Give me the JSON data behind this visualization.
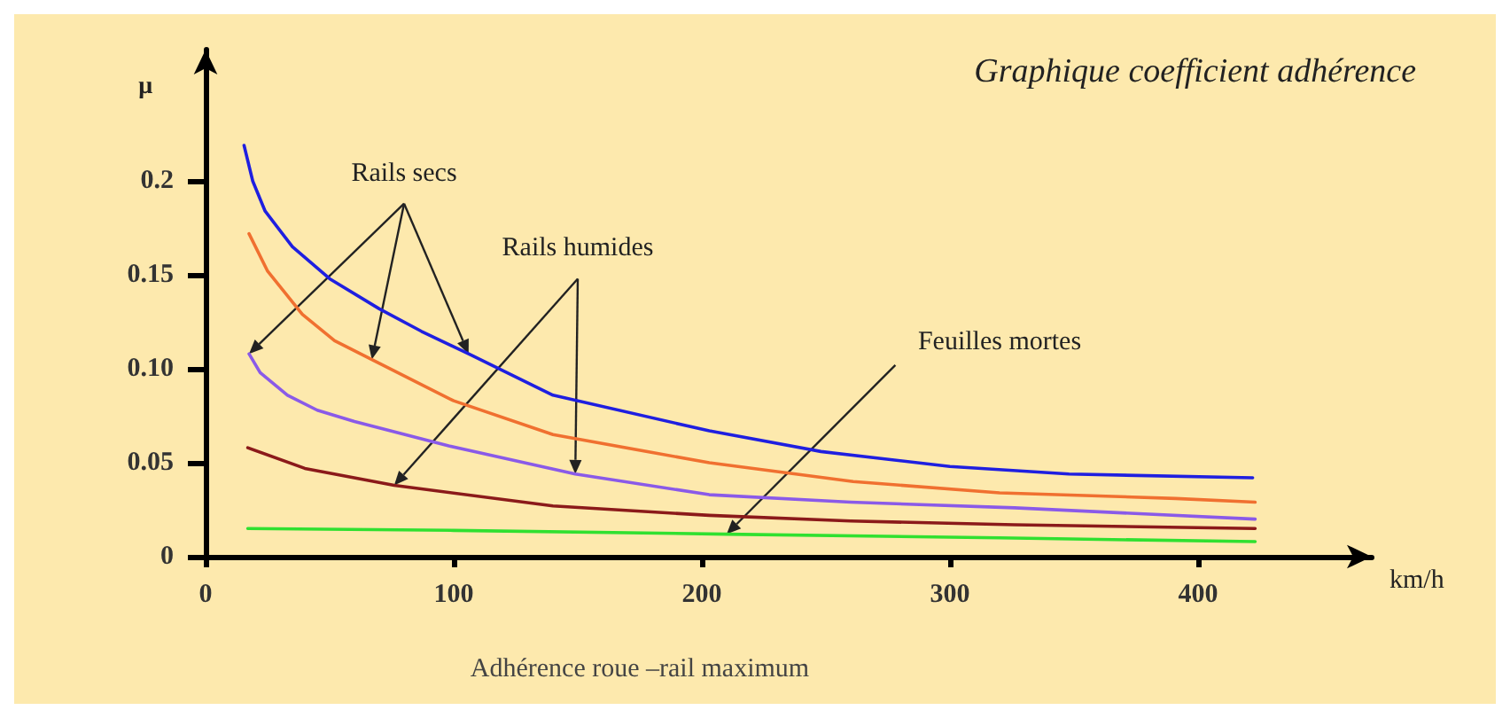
{
  "chart_data": {
    "type": "line",
    "title": "Graphique coefficient adhérence",
    "xlabel": "km/h",
    "ylabel": "μ",
    "annotations": [
      {
        "text": "Rails secs",
        "x": 106,
        "y": 0.108
      },
      {
        "text": "Rails humides",
        "x": 149,
        "y": 0.044
      },
      {
        "text": "Feuilles mortes",
        "x": 210,
        "y": 0.012
      },
      "Adhérence roue –rail maximum"
    ],
    "series": [
      {
        "color": "#1f1fe0",
        "x": [
          15.5,
          19,
          24,
          35,
          50,
          70,
          87,
          106,
          140,
          203,
          248,
          300,
          348,
          422
        ],
        "values": [
          0.219,
          0.2,
          0.184,
          0.165,
          0.148,
          0.132,
          0.12,
          0.108,
          0.086,
          0.067,
          0.056,
          0.048,
          0.044,
          0.042
        ]
      },
      {
        "color": "#f07030",
        "x": [
          17.5,
          25,
          39,
          52,
          67,
          100,
          140,
          203,
          261,
          320,
          391,
          423
        ],
        "values": [
          0.172,
          0.152,
          0.129,
          0.115,
          0.105,
          0.083,
          0.065,
          0.05,
          0.04,
          0.034,
          0.031,
          0.029
        ]
      },
      {
        "color": "#8a5ae8",
        "x": [
          17.5,
          22,
          33,
          45,
          60,
          98,
          149,
          203,
          260,
          326,
          423
        ],
        "values": [
          0.108,
          0.098,
          0.086,
          0.078,
          0.072,
          0.059,
          0.044,
          0.033,
          0.029,
          0.026,
          0.02
        ]
      },
      {
        "color": "#8b1a1a",
        "x": [
          17,
          40,
          76,
          140,
          203,
          260,
          326,
          423
        ],
        "values": [
          0.058,
          0.047,
          0.038,
          0.027,
          0.022,
          0.019,
          0.017,
          0.015
        ]
      },
      {
        "color": "#30e030",
        "x": [
          17,
          100,
          210,
          320,
          423
        ],
        "values": [
          0.015,
          0.014,
          0.012,
          0.01,
          0.008
        ]
      }
    ],
    "xlim": [
      0,
      470
    ],
    "xticks": [
      0,
      100,
      200,
      300,
      400
    ],
    "ylim": [
      0,
      0.27
    ],
    "yticks": [
      0,
      0.05,
      {
        "value": 0.1,
        "label": "0.10"
      },
      0.15,
      0.2
    ],
    "grid": false,
    "marker": "none"
  }
}
